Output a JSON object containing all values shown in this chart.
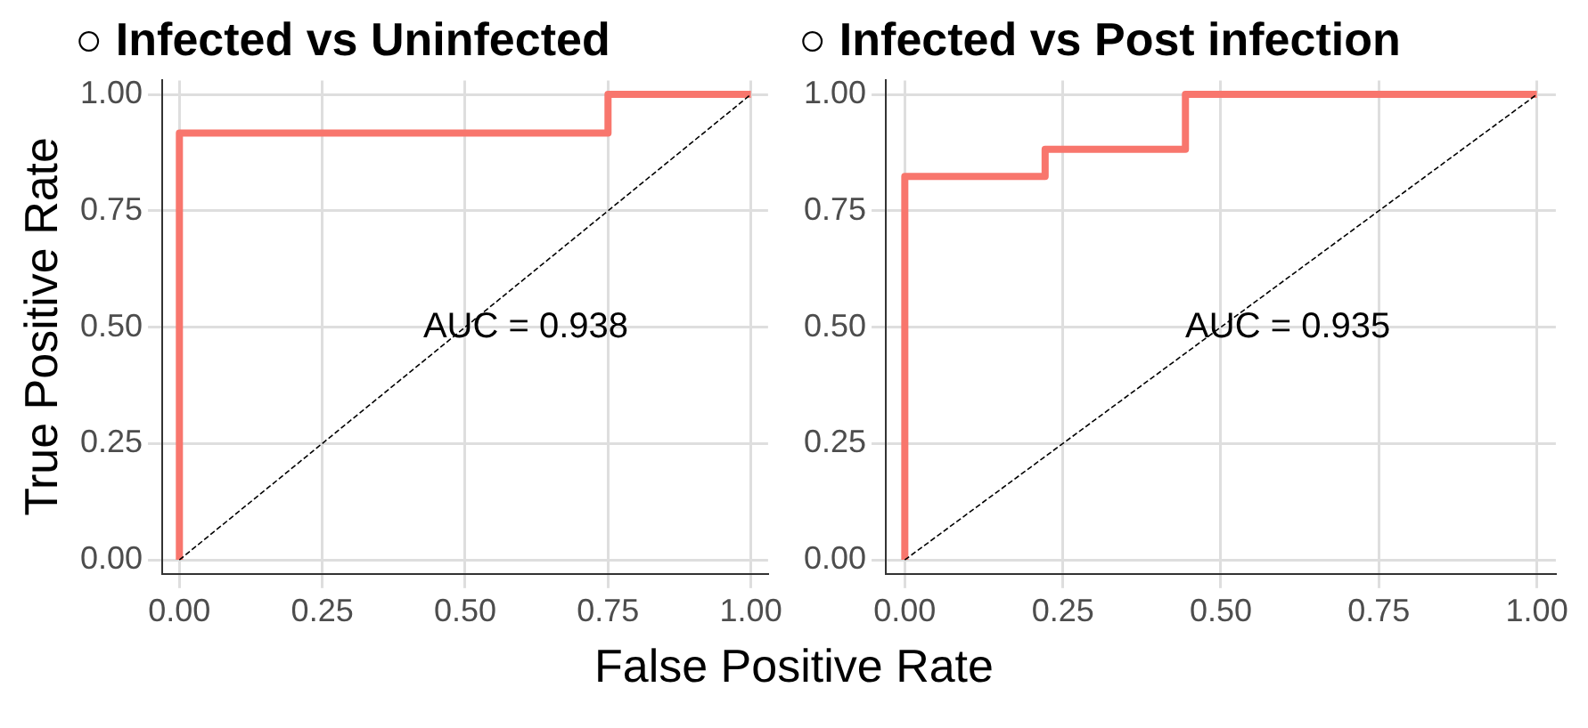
{
  "chart_data": [
    {
      "type": "line",
      "title": "○ Infected vs Uninfected",
      "ylabel": "True Positive Rate",
      "xlabel": "False Positive Rate",
      "xlim": [
        -0.03,
        1.03
      ],
      "ylim": [
        -0.03,
        1.03
      ],
      "xticks": [
        {
          "value": 0,
          "label": "0.00"
        },
        {
          "value": 0.25,
          "label": "0.25"
        },
        {
          "value": 0.5,
          "label": "0.50"
        },
        {
          "value": 0.75,
          "label": "0.75"
        },
        {
          "value": 1,
          "label": "1.00"
        }
      ],
      "yticks": [
        {
          "value": 0,
          "label": "0.00"
        },
        {
          "value": 0.25,
          "label": "0.25"
        },
        {
          "value": 0.5,
          "label": "0.50"
        },
        {
          "value": 0.75,
          "label": "0.75"
        },
        {
          "value": 1,
          "label": "1.00"
        }
      ],
      "grid": true,
      "legend": false,
      "marker": "none",
      "series": [
        {
          "color": "#f8766d",
          "x": [
            0,
            0,
            0.75,
            0.75,
            1
          ],
          "values": [
            0,
            0.917,
            0.917,
            1,
            1
          ]
        },
        {
          "type": "line",
          "color": "#000000",
          "line_style": "dashed",
          "x": [
            0,
            1
          ],
          "values": [
            0,
            1
          ]
        }
      ],
      "annotations": [
        "AUC = 0.938"
      ]
    },
    {
      "type": "line",
      "title": "○ Infected vs Post infection",
      "xlim": [
        -0.03,
        1.03
      ],
      "ylim": [
        -0.03,
        1.03
      ],
      "xticks": [
        {
          "value": 0,
          "label": "0.00"
        },
        {
          "value": 0.25,
          "label": "0.25"
        },
        {
          "value": 0.5,
          "label": "0.50"
        },
        {
          "value": 0.75,
          "label": "0.75"
        },
        {
          "value": 1,
          "label": "1.00"
        }
      ],
      "yticks": [
        {
          "value": 0,
          "label": "0.00"
        },
        {
          "value": 0.25,
          "label": "0.25"
        },
        {
          "value": 0.5,
          "label": "0.50"
        },
        {
          "value": 0.75,
          "label": "0.75"
        },
        {
          "value": 1,
          "label": "1.00"
        }
      ],
      "grid": true,
      "legend": false,
      "marker": "none",
      "series": [
        {
          "color": "#f8766d",
          "x": [
            0,
            0,
            0.222,
            0.222,
            0.444,
            0.444,
            1
          ],
          "values": [
            0,
            0.824,
            0.824,
            0.882,
            0.882,
            1,
            1
          ]
        },
        {
          "type": "line",
          "color": "#000000",
          "line_style": "dashed",
          "x": [
            0,
            1
          ],
          "values": [
            0,
            1
          ]
        }
      ],
      "annotations": [
        "AUC = 0.935"
      ]
    }
  ]
}
